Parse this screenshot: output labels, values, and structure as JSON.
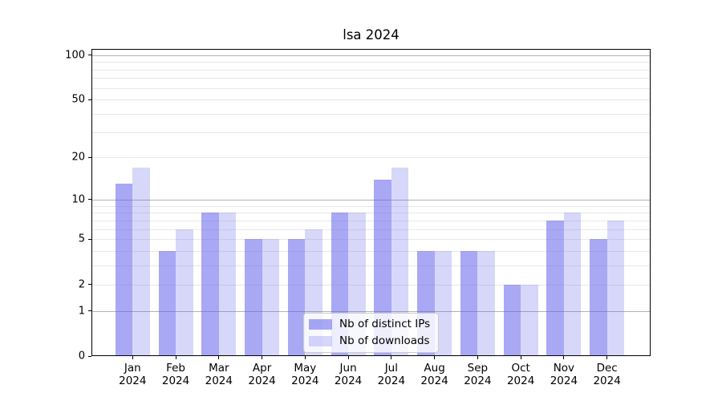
{
  "title": "lsa 2024",
  "chart_data": {
    "type": "bar",
    "title": "lsa 2024",
    "categories": [
      "Jan 2024",
      "Feb 2024",
      "Mar 2024",
      "Apr 2024",
      "May 2024",
      "Jun 2024",
      "Jul 2024",
      "Aug 2024",
      "Sep 2024",
      "Oct 2024",
      "Nov 2024",
      "Dec 2024"
    ],
    "series": [
      {
        "name": "Nb of distinct IPs",
        "values": [
          13,
          4,
          8,
          5,
          5,
          8,
          14,
          4,
          4,
          2,
          7,
          5
        ],
        "color": "#6060ec",
        "opacity": 0.55
      },
      {
        "name": "Nb of downloads",
        "values": [
          17,
          6,
          8,
          5,
          6,
          8,
          17,
          4,
          4,
          2,
          8,
          7
        ],
        "color": "#6060ec",
        "opacity": 0.25
      }
    ],
    "xlabel": "",
    "ylabel": "",
    "yscale": "log10(value+1)",
    "ylim": [
      0,
      110
    ],
    "ytick_labels": [
      0,
      1,
      2,
      5,
      10,
      20,
      50,
      100
    ],
    "major_gridlines": [
      1,
      10,
      100
    ],
    "minor_gridlines": [
      2,
      3,
      4,
      5,
      6,
      7,
      8,
      9,
      20,
      30,
      40,
      50,
      60,
      70,
      80,
      90
    ],
    "grid": true,
    "legend_position": "lower center",
    "colors": {
      "major_grid": "#b2b2b2",
      "minor_grid": "#e8e8e8",
      "spine": "#000000",
      "text": "#000000",
      "legend_border": "#cccccc"
    }
  },
  "legend": {
    "items": [
      {
        "label": "Nb of distinct IPs"
      },
      {
        "label": "Nb of downloads"
      }
    ]
  }
}
